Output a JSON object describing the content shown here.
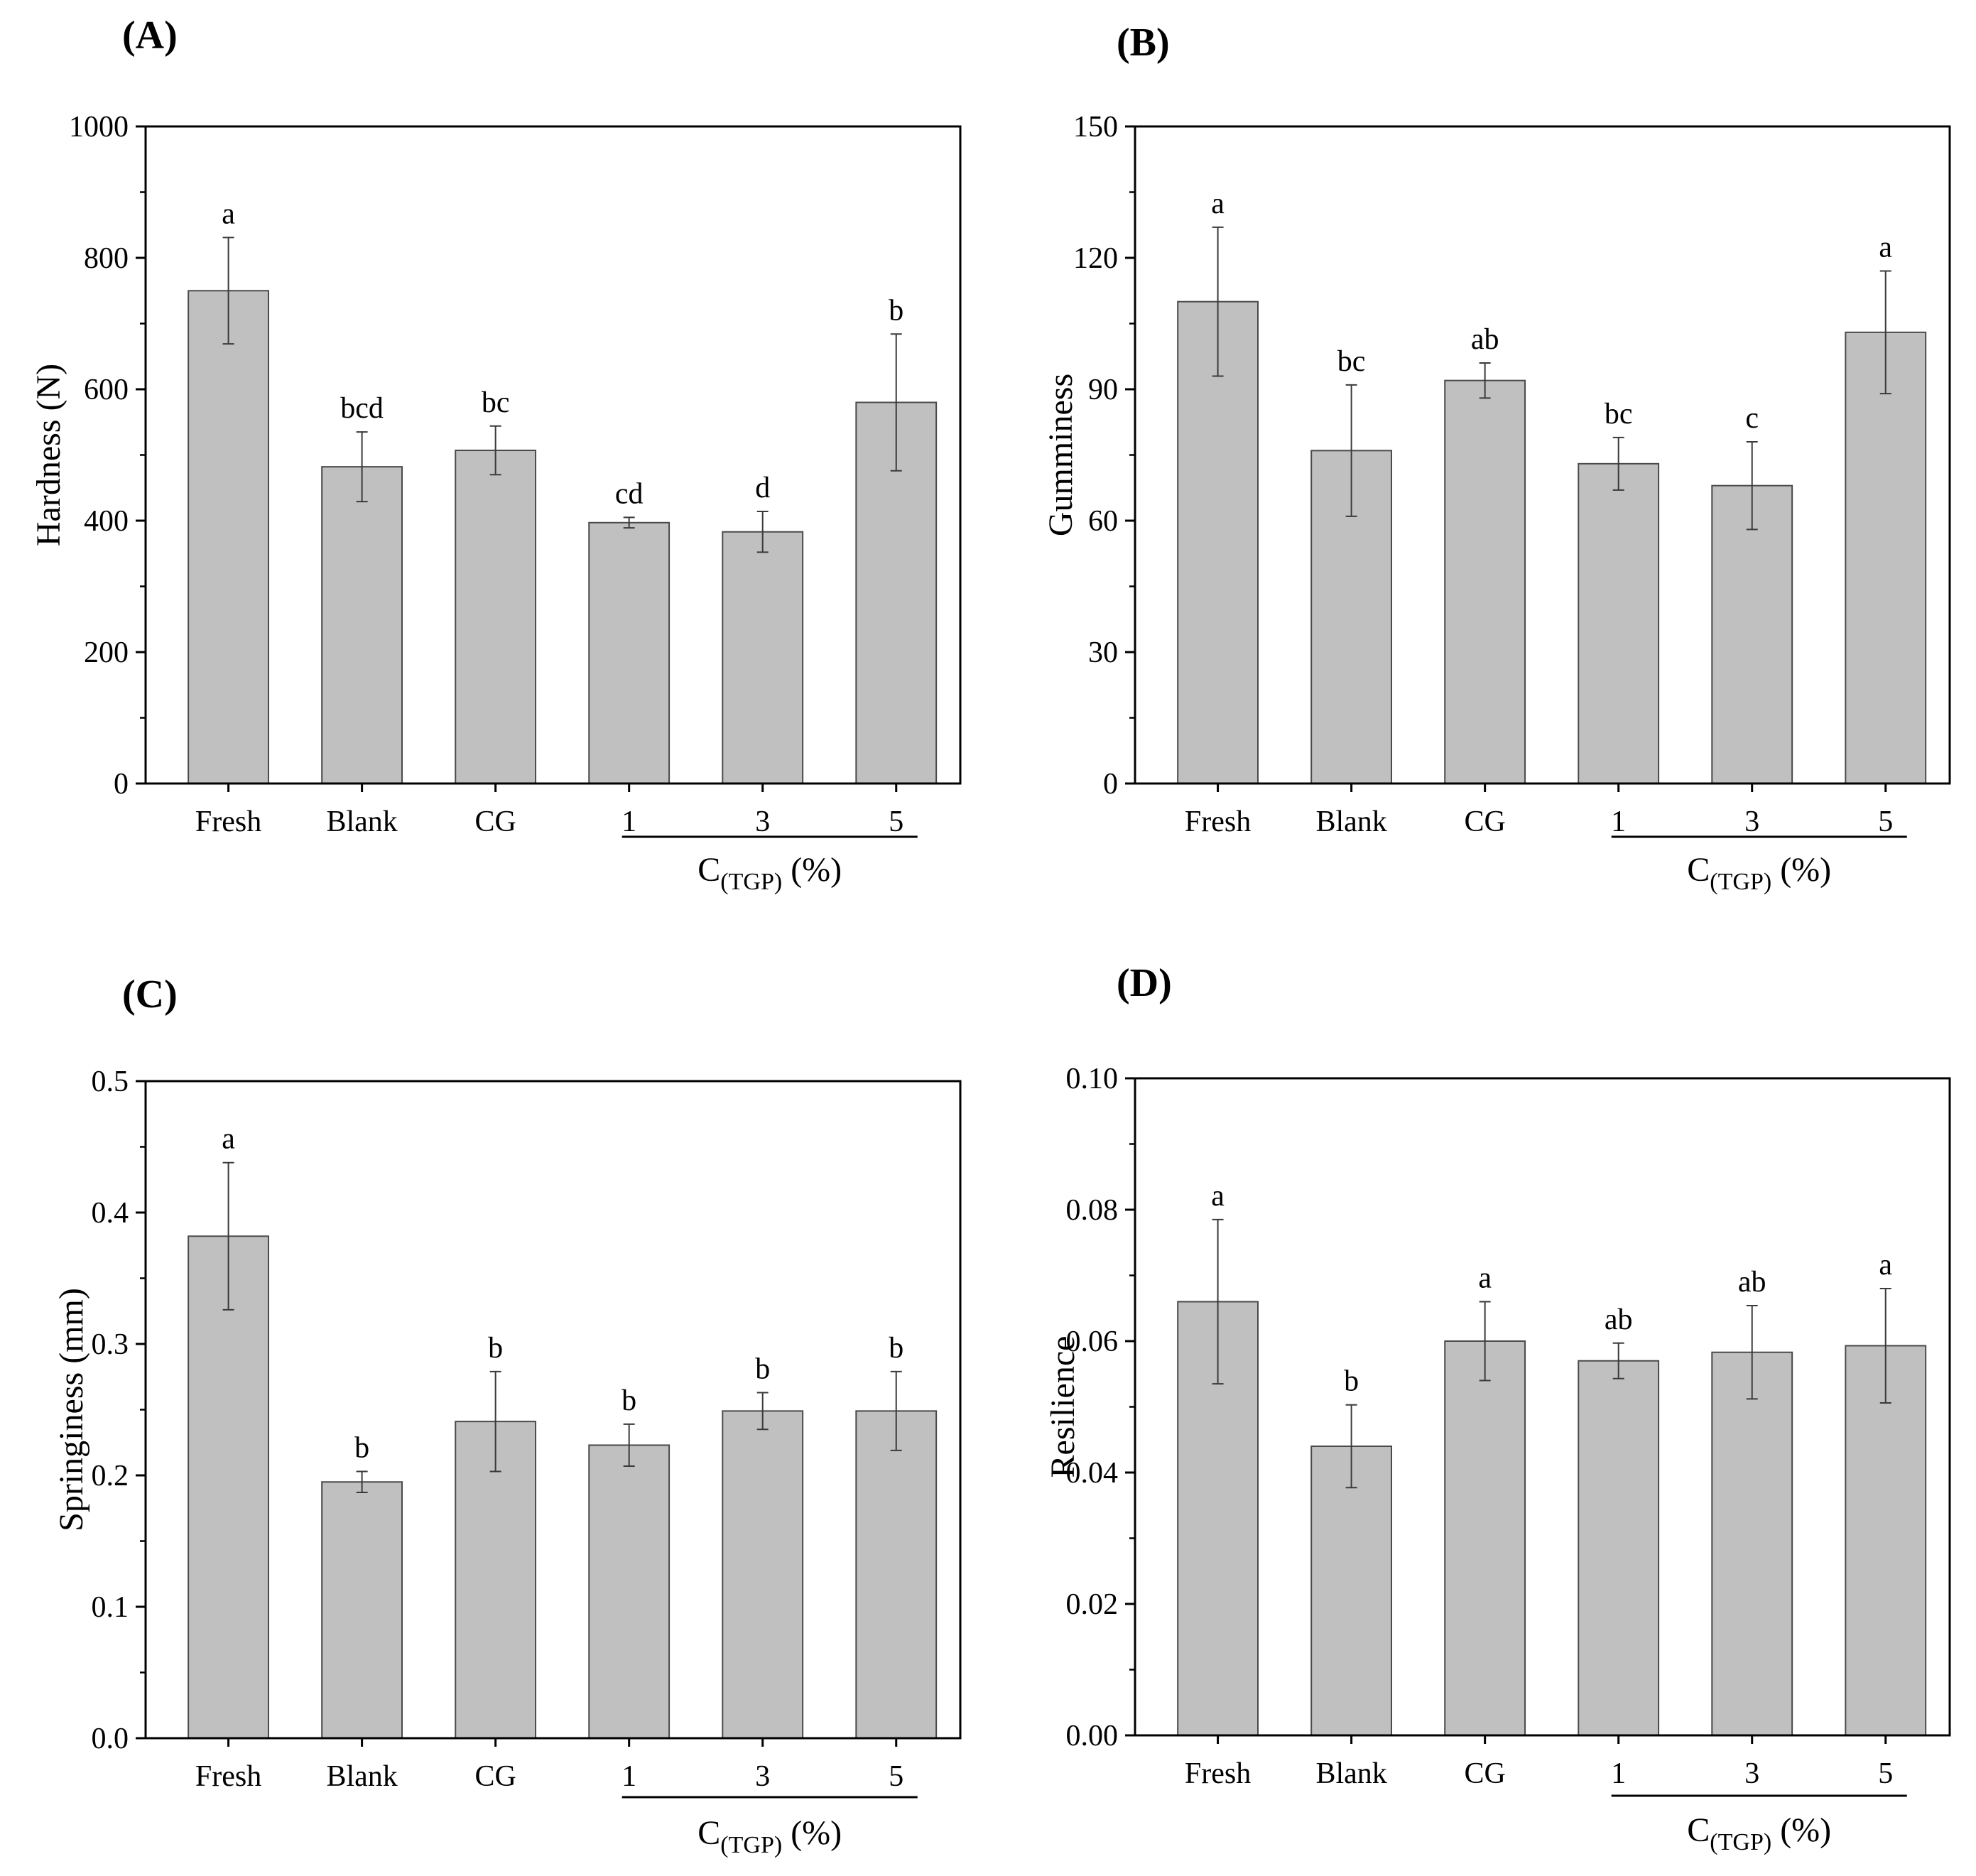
{
  "chart_data": [
    {
      "type": "bar",
      "panel_label": "(A)",
      "categories": [
        "Fresh",
        "Blank",
        "CG",
        "1",
        "3",
        "5"
      ],
      "values": [
        750,
        482,
        507,
        397,
        383,
        580
      ],
      "errors": [
        81,
        53,
        37,
        8,
        31,
        104
      ],
      "significance": [
        "a",
        "bcd",
        "bc",
        "cd",
        "d",
        "b"
      ],
      "ylabel": "Hardness (N)",
      "ylim": [
        0,
        1000
      ],
      "yticks": [
        "0",
        "200",
        "400",
        "600",
        "800",
        "1000"
      ],
      "group_label": {
        "main": "C",
        "sub": "(TGP)",
        "tail": " (%)"
      },
      "grid": false
    },
    {
      "type": "bar",
      "panel_label": "(B)",
      "categories": [
        "Fresh",
        "Blank",
        "CG",
        "1",
        "3",
        "5"
      ],
      "values": [
        110,
        76,
        92,
        73,
        68,
        103
      ],
      "errors": [
        17,
        15,
        4,
        6,
        10,
        14
      ],
      "significance": [
        "a",
        "bc",
        "ab",
        "bc",
        "c",
        "a"
      ],
      "ylabel": "Gumminess",
      "ylim": [
        0,
        150
      ],
      "yticks": [
        "0",
        "30",
        "60",
        "90",
        "120",
        "150"
      ],
      "group_label": {
        "main": "C",
        "sub": "(TGP)",
        "tail": " (%)"
      },
      "grid": false
    },
    {
      "type": "bar",
      "panel_label": "(C)",
      "categories": [
        "Fresh",
        "Blank",
        "CG",
        "1",
        "3",
        "5"
      ],
      "values": [
        0.382,
        0.195,
        0.241,
        0.223,
        0.249,
        0.249
      ],
      "errors": [
        0.056,
        0.008,
        0.038,
        0.016,
        0.014,
        0.03
      ],
      "significance": [
        "a",
        "b",
        "b",
        "b",
        "b",
        "b"
      ],
      "ylabel": "Springiness (mm)",
      "ylim": [
        0,
        0.5
      ],
      "yticks": [
        "0.0",
        "0.1",
        "0.2",
        "0.3",
        "0.4",
        "0.5"
      ],
      "group_label": {
        "main": "C",
        "sub": "(TGP)",
        "tail": " (%)"
      },
      "grid": false
    },
    {
      "type": "bar",
      "panel_label": "(D)",
      "categories": [
        "Fresh",
        "Blank",
        "CG",
        "1",
        "3",
        "5"
      ],
      "values": [
        0.066,
        0.044,
        0.06,
        0.057,
        0.0583,
        0.0593
      ],
      "errors": [
        0.0125,
        0.0063,
        0.006,
        0.0027,
        0.0071,
        0.0087
      ],
      "significance": [
        "a",
        "b",
        "a",
        "ab",
        "ab",
        "a"
      ],
      "ylabel": "Resilience",
      "ylim": [
        0,
        0.1
      ],
      "yticks": [
        "0.00",
        "0.02",
        "0.04",
        "0.06",
        "0.08",
        "0.10"
      ],
      "group_label": {
        "main": "C",
        "sub": "(TGP)",
        "tail": " (%)"
      },
      "grid": false
    }
  ]
}
